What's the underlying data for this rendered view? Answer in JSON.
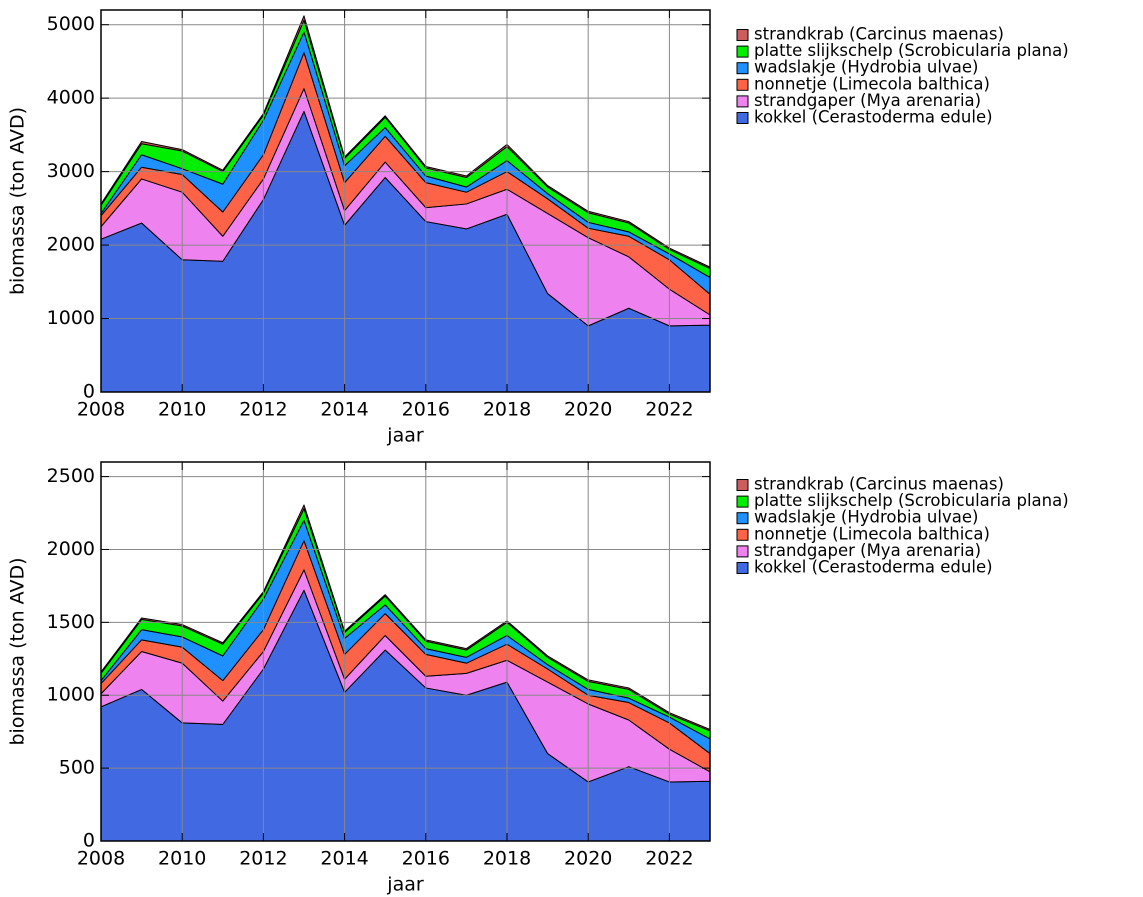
{
  "chart_data": [
    {
      "type": "stacked_area",
      "x": [
        2008,
        2009,
        2010,
        2011,
        2012,
        2013,
        2014,
        2015,
        2016,
        2017,
        2018,
        2019,
        2020,
        2021,
        2022,
        2023
      ],
      "x_label": "jaar",
      "y_label": "biomassa (ton AVD)",
      "xlim": [
        2008,
        2023
      ],
      "xticks": [
        2008,
        2010,
        2012,
        2014,
        2016,
        2018,
        2020,
        2022
      ],
      "ylim": [
        0,
        5200
      ],
      "yticks": [
        0,
        1000,
        2000,
        3000,
        4000,
        5000
      ],
      "grid": true,
      "legend": "right",
      "series": [
        {
          "name": "kokkel (Cerastoderma edule)",
          "color": "#4169e1",
          "values": [
            2080,
            2300,
            1800,
            1780,
            2620,
            3820,
            2270,
            2920,
            2320,
            2220,
            2420,
            1340,
            900,
            1140,
            900,
            910
          ]
        },
        {
          "name": "strandgaper (Mya arenaria)",
          "color": "#ee82ee",
          "values": [
            170,
            600,
            920,
            340,
            280,
            310,
            200,
            210,
            190,
            340,
            340,
            1090,
            1200,
            700,
            500,
            140
          ]
        },
        {
          "name": "nonnetje (Limecola balthica)",
          "color": "#ff6347",
          "values": [
            150,
            160,
            240,
            330,
            330,
            490,
            380,
            350,
            340,
            160,
            240,
            200,
            130,
            280,
            400,
            280
          ]
        },
        {
          "name": "wadslakje (Hydrobia ulvae)",
          "color": "#1e90ff",
          "values": [
            30,
            170,
            80,
            380,
            470,
            280,
            230,
            120,
            90,
            70,
            150,
            70,
            80,
            60,
            80,
            230
          ]
        },
        {
          "name": "platte slijkschelp (Scrobicularia plana)",
          "color": "#00ee00",
          "values": [
            110,
            150,
            240,
            170,
            70,
            160,
            100,
            140,
            110,
            130,
            190,
            90,
            130,
            120,
            60,
            120
          ]
        },
        {
          "name": "strandkrab (Carcinus maenas)",
          "color": "#cd5c5c",
          "values": [
            20,
            30,
            20,
            20,
            20,
            60,
            20,
            20,
            20,
            20,
            30,
            20,
            20,
            20,
            20,
            20
          ]
        }
      ]
    },
    {
      "type": "stacked_area",
      "x": [
        2008,
        2009,
        2010,
        2011,
        2012,
        2013,
        2014,
        2015,
        2016,
        2017,
        2018,
        2019,
        2020,
        2021,
        2022,
        2023
      ],
      "x_label": "jaar",
      "y_label": "biomassa (ton AVD)",
      "xlim": [
        2008,
        2023
      ],
      "xticks": [
        2008,
        2010,
        2012,
        2014,
        2016,
        2018,
        2020,
        2022
      ],
      "ylim": [
        0,
        2600
      ],
      "yticks": [
        0,
        500,
        1000,
        1500,
        2000,
        2500
      ],
      "grid": true,
      "legend": "right",
      "series": [
        {
          "name": "kokkel (Cerastoderma edule)",
          "color": "#4169e1",
          "values": [
            920,
            1040,
            810,
            800,
            1180,
            1720,
            1020,
            1310,
            1050,
            1000,
            1090,
            600,
            405,
            510,
            405,
            410
          ]
        },
        {
          "name": "strandgaper (Mya arenaria)",
          "color": "#ee82ee",
          "values": [
            90,
            260,
            410,
            160,
            120,
            140,
            90,
            100,
            80,
            150,
            150,
            490,
            535,
            320,
            225,
            65
          ]
        },
        {
          "name": "nonnetje (Limecola balthica)",
          "color": "#ff6347",
          "values": [
            70,
            80,
            110,
            140,
            150,
            200,
            170,
            150,
            150,
            70,
            110,
            90,
            60,
            120,
            180,
            125
          ]
        },
        {
          "name": "wadslakje (Hydrobia ulvae)",
          "color": "#1e90ff",
          "values": [
            20,
            70,
            70,
            170,
            210,
            140,
            110,
            60,
            40,
            40,
            60,
            30,
            40,
            30,
            40,
            100
          ]
        },
        {
          "name": "platte slijkschelp (Scrobicularia plana)",
          "color": "#00ee00",
          "values": [
            50,
            70,
            75,
            80,
            40,
            80,
            40,
            60,
            50,
            50,
            90,
            50,
            55,
            60,
            20,
            55
          ]
        },
        {
          "name": "strandkrab (Carcinus maenas)",
          "color": "#cd5c5c",
          "values": [
            10,
            10,
            10,
            10,
            10,
            25,
            10,
            10,
            10,
            10,
            10,
            10,
            10,
            10,
            10,
            10
          ]
        }
      ]
    }
  ]
}
